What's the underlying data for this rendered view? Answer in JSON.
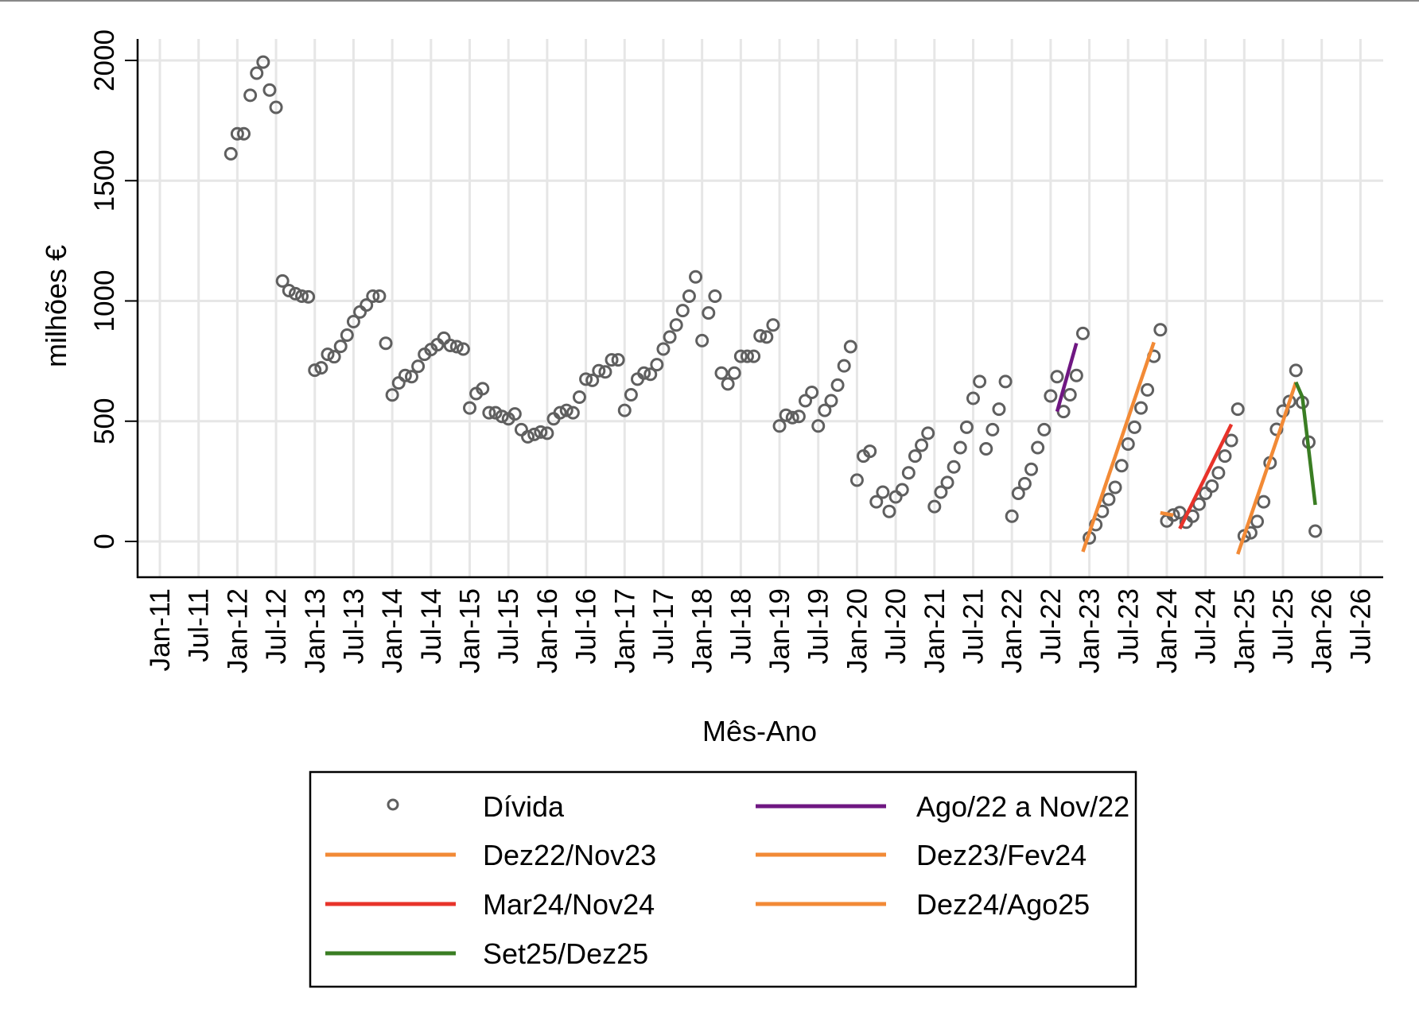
{
  "chart_data": {
    "type": "scatter",
    "title": "",
    "xlabel": "Mês-Ano",
    "ylabel": "milhões €",
    "ylim": [
      -80,
      2090
    ],
    "xlim_months_from_jan11": [
      -3.5,
      188.5
    ],
    "grid": true,
    "legend_position": "bottom",
    "y_ticks": [
      0,
      500,
      1000,
      1500,
      2000
    ],
    "x_ticks": [
      "Jan-11",
      "Jul-11",
      "Jan-12",
      "Jul-12",
      "Jan-13",
      "Jul-13",
      "Jan-14",
      "Jul-14",
      "Jan-15",
      "Jul-15",
      "Jan-16",
      "Jul-16",
      "Jan-17",
      "Jul-17",
      "Jan-18",
      "Jul-18",
      "Jan-19",
      "Jul-19",
      "Jan-20",
      "Jul-20",
      "Jan-21",
      "Jul-21",
      "Jan-22",
      "Jul-22",
      "Jan-23",
      "Jul-23",
      "Jan-24",
      "Jul-24",
      "Jan-25",
      "Jul-25",
      "Jan-26",
      "Jul-26"
    ],
    "scatter": {
      "name": "Dívida",
      "start_month": "Dec-11",
      "color": "#5f5f5f",
      "values": [
        1612,
        1695,
        1695,
        1855,
        1947,
        1993,
        1877,
        1805,
        1083,
        1043,
        1030,
        1020,
        1017,
        712,
        722,
        778,
        768,
        811,
        858,
        914,
        954,
        983,
        1020,
        1020,
        824,
        609,
        659,
        690,
        685,
        728,
        778,
        798,
        818,
        845,
        815,
        810,
        800,
        555,
        615,
        635,
        535,
        535,
        520,
        510,
        530,
        465,
        435,
        445,
        455,
        450,
        510,
        535,
        545,
        535,
        600,
        675,
        670,
        710,
        705,
        755,
        755,
        545,
        610,
        675,
        700,
        695,
        735,
        800,
        850,
        900,
        960,
        1020,
        1100,
        835,
        950,
        1020,
        700,
        655,
        700,
        770,
        770,
        770,
        855,
        850,
        900,
        480,
        525,
        515,
        520,
        585,
        620,
        480,
        545,
        585,
        650,
        730,
        810,
        255,
        355,
        375,
        165,
        205,
        125,
        185,
        215,
        285,
        355,
        400,
        450,
        145,
        205,
        245,
        310,
        390,
        475,
        595,
        665,
        385,
        465,
        550,
        665,
        105,
        200,
        240,
        300,
        390,
        465,
        605,
        685,
        540,
        610,
        690,
        865,
        15,
        70,
        125,
        175,
        225,
        315,
        405,
        475,
        555,
        630,
        770,
        880,
        85,
        110,
        120,
        80,
        105,
        155,
        200,
        230,
        285,
        355,
        420,
        550,
        23,
        36,
        83,
        165,
        327,
        466,
        542,
        582,
        711,
        578,
        413,
        43
      ]
    },
    "fit_lines": [
      {
        "name": "Ago/22 a Nov/22",
        "color": "#6f1782",
        "points": [
          [
            "Aug-22",
            540
          ],
          [
            "Nov-22",
            824
          ]
        ]
      },
      {
        "name": "Dez22/Nov23",
        "color": "#f28a36",
        "points": [
          [
            "Dec-22",
            -43
          ],
          [
            "Nov-23",
            828
          ]
        ]
      },
      {
        "name": "Dez23/Fev24",
        "color": "#f28a36",
        "points": [
          [
            "Dec-23",
            119
          ],
          [
            "Feb-24",
            109
          ]
        ]
      },
      {
        "name": "Mar24/Nov24",
        "color": "#e8332a",
        "points": [
          [
            "Mar-24",
            53
          ],
          [
            "Nov-24",
            487
          ]
        ]
      },
      {
        "name": "Dez24/Ago25",
        "color": "#f28a36",
        "points": [
          [
            "Dec-24",
            -53
          ],
          [
            "Jun-25",
            420
          ],
          [
            "Jul-25",
            500
          ],
          [
            "Sep-25",
            662
          ]
        ]
      },
      {
        "name": "Set25/Dez25",
        "color": "#3a7d23",
        "points": [
          [
            "Sep-25",
            662
          ],
          [
            "Oct-25",
            600
          ],
          [
            "Dec-25",
            152
          ]
        ]
      }
    ],
    "legend": [
      {
        "label": "Dívida",
        "kind": "marker",
        "color": "#5f5f5f"
      },
      {
        "label": "Ago/22 a Nov/22",
        "kind": "line",
        "color": "#6f1782"
      },
      {
        "label": "Dez22/Nov23",
        "kind": "line",
        "color": "#f28a36"
      },
      {
        "label": "Dez23/Fev24",
        "kind": "line",
        "color": "#f28a36"
      },
      {
        "label": "Mar24/Nov24",
        "kind": "line",
        "color": "#e8332a"
      },
      {
        "label": "Dez24/Ago25",
        "kind": "line",
        "color": "#f28a36"
      },
      {
        "label": "Set25/Dez25",
        "kind": "line",
        "color": "#3a7d23"
      }
    ]
  }
}
